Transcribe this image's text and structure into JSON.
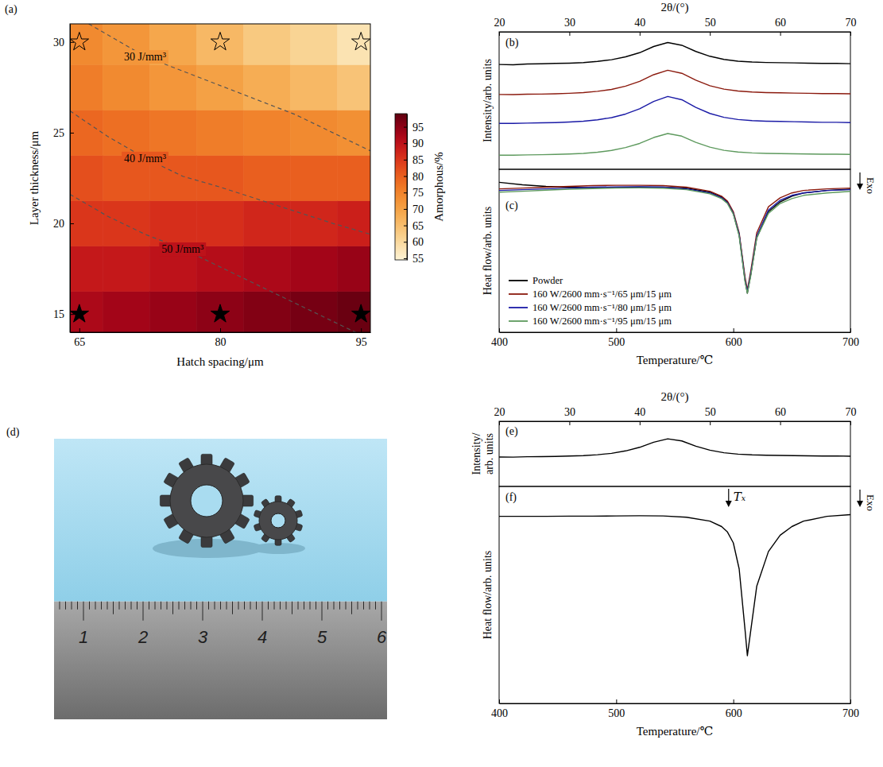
{
  "chart_data": [
    {
      "panel": "(a)",
      "type": "heatmap",
      "x_label": "Hatch spacing/μm",
      "y_label": "Layer thickness/μm",
      "xlim": [
        64,
        96
      ],
      "ylim": [
        14,
        31
      ],
      "xticks": [
        65,
        80,
        95
      ],
      "yticks": [
        15,
        20,
        25,
        30
      ],
      "cells": {
        "x": [
          65,
          70,
          75,
          80,
          85,
          90,
          95
        ],
        "y": [
          15,
          17.5,
          20,
          22.5,
          25,
          27.5,
          30
        ],
        "values": [
          [
            92,
            93,
            94,
            95,
            96,
            97,
            98
          ],
          [
            89,
            89,
            90,
            91,
            92,
            93,
            94
          ],
          [
            85,
            85,
            86,
            86,
            87,
            87,
            88
          ],
          [
            82,
            81,
            81,
            81,
            80,
            80,
            80
          ],
          [
            79,
            78,
            77,
            76,
            75,
            74,
            73
          ],
          [
            76,
            74,
            72,
            70,
            68,
            66,
            64
          ],
          [
            74,
            72,
            69,
            66,
            63,
            61,
            58
          ]
        ]
      },
      "colorbar": {
        "label": "Amorphous/%",
        "range": [
          54.5,
          99
        ],
        "ticks": [
          55,
          60,
          65,
          70,
          75,
          80,
          85,
          90,
          95
        ]
      },
      "contours": [
        {
          "label": "30 J/mm³",
          "x": [
            66,
            72,
            80,
            88,
            96
          ],
          "y": [
            31,
            29.2,
            27.6,
            26,
            24
          ]
        },
        {
          "label": "40 J/mm³",
          "x": [
            64,
            68,
            72,
            76,
            80,
            86,
            92,
            96
          ],
          "y": [
            26.2,
            24.8,
            23.6,
            22.6,
            22,
            21,
            20,
            19.4
          ]
        },
        {
          "label": "50 J/mm³",
          "x": [
            64,
            68,
            72,
            76,
            80,
            84,
            88,
            92,
            96
          ],
          "y": [
            21.6,
            20.4,
            19.4,
            18.6,
            17.6,
            16.6,
            15.6,
            14.6,
            13.6
          ]
        }
      ],
      "series": [
        {
          "x": [
            65,
            80,
            95
          ],
          "values": [
            30,
            30,
            30
          ],
          "marker": "star-open"
        },
        {
          "x": [
            65,
            80,
            95
          ],
          "values": [
            15,
            15,
            15
          ],
          "marker": "star"
        }
      ]
    },
    {
      "panel": "(b)",
      "type": "line",
      "x_label": "2θ/(°)",
      "y_label": "Intensity/arb. units",
      "x": [
        20,
        22,
        24,
        26,
        28,
        30,
        32,
        34,
        36,
        38,
        40,
        42,
        44,
        46,
        48,
        50,
        52,
        54,
        56,
        58,
        60,
        62,
        64,
        66,
        68,
        70
      ],
      "xlim": [
        20,
        70
      ],
      "xticks": [
        20,
        30,
        40,
        50,
        60,
        70
      ],
      "ylim": [
        0,
        10
      ],
      "tick_labels": "x",
      "series": [
        {
          "color": "#000000",
          "values": [
            7.62,
            7.6,
            7.66,
            7.67,
            7.7,
            7.72,
            7.76,
            7.85,
            7.97,
            8.18,
            8.48,
            8.93,
            9.22,
            9.02,
            8.57,
            8.22,
            7.99,
            7.86,
            7.8,
            7.77,
            7.75,
            7.74,
            7.72,
            7.7,
            7.7,
            7.68
          ]
        },
        {
          "color": "#8b1a0e",
          "values": [
            5.44,
            5.43,
            5.46,
            5.47,
            5.49,
            5.53,
            5.58,
            5.67,
            5.81,
            6.05,
            6.39,
            6.88,
            7.2,
            6.98,
            6.48,
            6.08,
            5.83,
            5.69,
            5.62,
            5.58,
            5.56,
            5.54,
            5.53,
            5.51,
            5.51,
            5.49
          ]
        },
        {
          "color": "#1a1aa6",
          "values": [
            3.34,
            3.34,
            3.36,
            3.38,
            3.4,
            3.44,
            3.5,
            3.6,
            3.76,
            4.02,
            4.4,
            4.94,
            5.3,
            5.06,
            4.5,
            4.06,
            3.78,
            3.62,
            3.54,
            3.5,
            3.48,
            3.46,
            3.44,
            3.42,
            3.42,
            3.4
          ]
        },
        {
          "color": "#5e9a5e",
          "values": [
            1.03,
            1.03,
            1.05,
            1.06,
            1.08,
            1.11,
            1.16,
            1.24,
            1.37,
            1.58,
            1.88,
            2.31,
            2.6,
            2.41,
            1.96,
            1.61,
            1.38,
            1.26,
            1.19,
            1.16,
            1.14,
            1.13,
            1.11,
            1.1,
            1.1,
            1.08
          ]
        }
      ]
    },
    {
      "panel": "(c)",
      "type": "line",
      "x_label": "Temperature/℃",
      "y_label": "Heat flow/arb. units",
      "x": [
        400,
        420,
        440,
        460,
        480,
        500,
        520,
        540,
        560,
        580,
        590,
        595,
        600,
        605,
        610,
        612,
        615,
        620,
        630,
        640,
        650,
        660,
        680,
        700
      ],
      "xlim": [
        400,
        700
      ],
      "xticks": [
        400,
        500,
        600,
        700
      ],
      "ylim": [
        0,
        10
      ],
      "tick_labels": "x",
      "legend": "lower left",
      "annotations": [
        {
          "text": "Exo"
        }
      ],
      "series": [
        {
          "name": "Powder",
          "color": "#000000",
          "values": [
            9.2,
            9.05,
            8.95,
            8.9,
            8.88,
            8.88,
            8.9,
            8.9,
            8.85,
            8.6,
            8.3,
            8.0,
            7.3,
            6.0,
            3.2,
            2.4,
            3.6,
            5.8,
            7.4,
            8.0,
            8.35,
            8.55,
            8.7,
            8.78
          ]
        },
        {
          "name": "160 W/2600 mm·s⁻¹/65 μm/15 μm",
          "color": "#8b1a0e",
          "values": [
            8.8,
            8.85,
            8.9,
            8.95,
            9.0,
            9.02,
            9.02,
            9.0,
            8.9,
            8.65,
            8.35,
            8.05,
            7.4,
            6.1,
            3.4,
            2.6,
            3.8,
            6.1,
            7.7,
            8.25,
            8.55,
            8.7,
            8.8,
            8.85
          ]
        },
        {
          "name": "160 W/2600 mm·s⁻¹/80 μm/15 μm",
          "color": "#1a1aa6",
          "values": [
            8.7,
            8.75,
            8.8,
            8.85,
            8.9,
            8.92,
            8.93,
            8.9,
            8.8,
            8.55,
            8.25,
            7.95,
            7.3,
            6.0,
            3.2,
            2.5,
            3.6,
            5.9,
            7.5,
            8.1,
            8.4,
            8.55,
            8.7,
            8.75
          ]
        },
        {
          "name": "160 W/2600 mm·s⁻¹/95 μm/15 μm",
          "color": "#5e9a5e",
          "values": [
            8.6,
            8.65,
            8.72,
            8.78,
            8.82,
            8.85,
            8.86,
            8.84,
            8.75,
            8.5,
            8.2,
            7.9,
            7.25,
            5.9,
            3.1,
            2.4,
            3.5,
            5.8,
            7.3,
            7.9,
            8.2,
            8.4,
            8.55,
            8.65
          ]
        }
      ]
    },
    {
      "panel": "(d)",
      "type": "photo",
      "ruler_labels": [
        1,
        2,
        3,
        4,
        5,
        6
      ]
    },
    {
      "panel": "(e)",
      "type": "line",
      "x_label": "2θ/(°)",
      "y_label": "Intensity/arb. units",
      "x": [
        20,
        22,
        24,
        26,
        28,
        30,
        32,
        34,
        36,
        38,
        40,
        42,
        44,
        46,
        48,
        50,
        52,
        54,
        56,
        58,
        60,
        62,
        64,
        66,
        68,
        70
      ],
      "xlim": [
        20,
        70
      ],
      "xticks": [
        20,
        30,
        40,
        50,
        60,
        70
      ],
      "ylim": [
        0,
        10
      ],
      "tick_labels": "x",
      "series": [
        {
          "color": "#000000",
          "values": [
            4.52,
            4.5,
            4.56,
            4.57,
            4.61,
            4.66,
            4.72,
            4.86,
            5.08,
            5.45,
            6.0,
            6.78,
            7.3,
            6.98,
            6.18,
            5.56,
            5.17,
            4.95,
            4.84,
            4.78,
            4.75,
            4.72,
            4.7,
            4.67,
            4.68,
            4.64
          ]
        }
      ]
    },
    {
      "panel": "(f)",
      "type": "line",
      "x_label": "Temperature/℃",
      "y_label": "Heat flow/arb. units",
      "x": [
        400,
        420,
        440,
        460,
        480,
        500,
        520,
        540,
        560,
        580,
        590,
        595,
        600,
        605,
        610,
        612,
        615,
        620,
        630,
        640,
        650,
        660,
        680,
        700
      ],
      "xlim": [
        400,
        700
      ],
      "xticks": [
        400,
        500,
        600,
        700
      ],
      "ylim": [
        0,
        10
      ],
      "tick_labels": "x",
      "annotations": [
        {
          "text": "Tₓ",
          "x": 596
        },
        {
          "text": "Exo"
        }
      ],
      "series": [
        {
          "color": "#000000",
          "values": [
            8.62,
            8.62,
            8.62,
            8.63,
            8.63,
            8.64,
            8.65,
            8.64,
            8.58,
            8.4,
            8.15,
            7.9,
            7.4,
            6.2,
            3.4,
            2.2,
            3.4,
            5.4,
            7.0,
            7.75,
            8.15,
            8.4,
            8.62,
            8.7
          ]
        }
      ]
    }
  ]
}
